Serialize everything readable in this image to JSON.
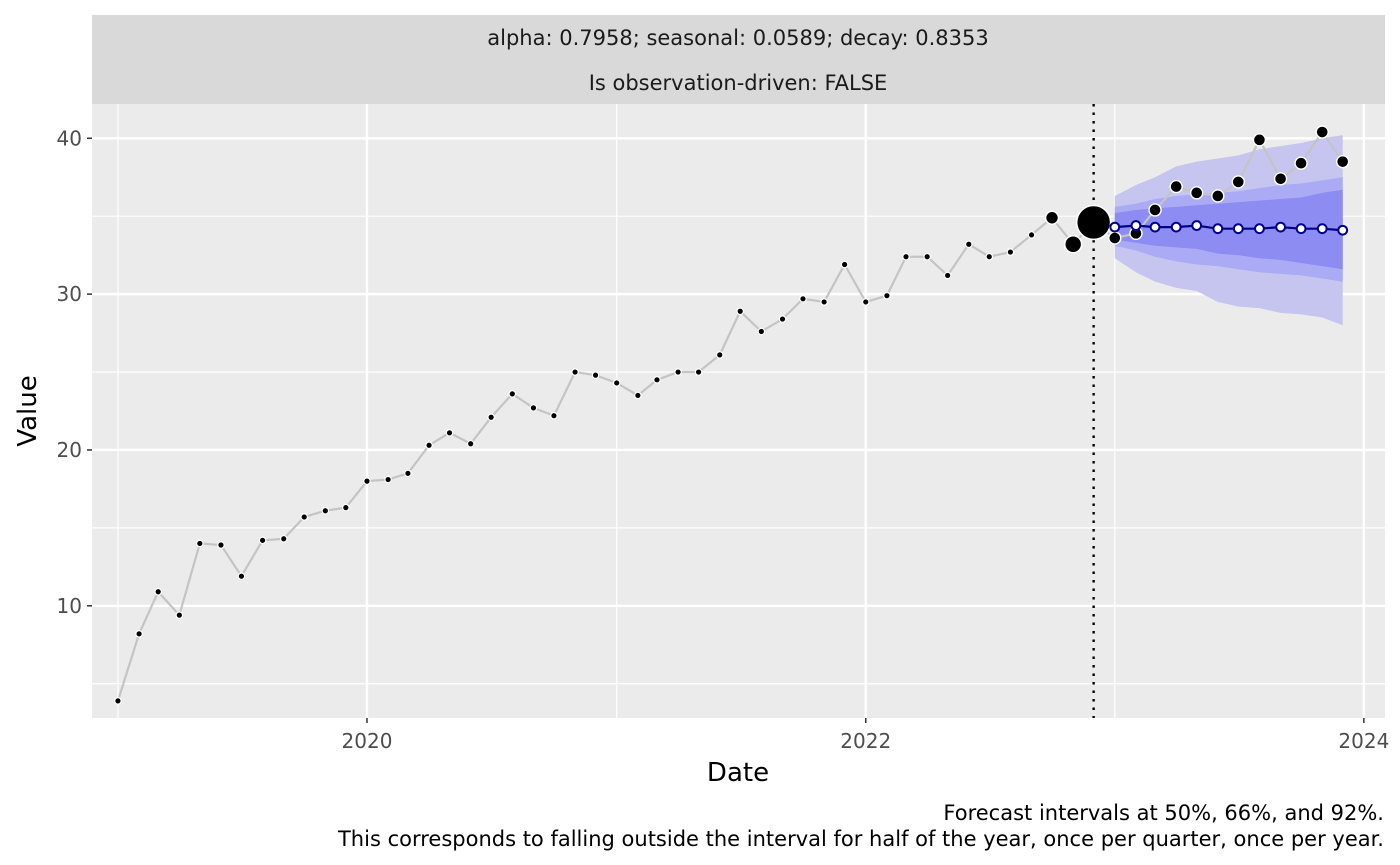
{
  "chart_data": {
    "type": "line",
    "facet_strip": [
      "alpha: 0.7958; seasonal: 0.0589; decay: 0.8353",
      "Is observation-driven: FALSE"
    ],
    "xlabel": "Date",
    "ylabel": "Value",
    "x_ticks": [
      "2020",
      "2022",
      "2024"
    ],
    "y_ticks": [
      10,
      20,
      30,
      40
    ],
    "xlim": [
      "2018-11-24",
      "2024-02-01"
    ],
    "ylim": [
      2.8,
      42.2
    ],
    "grid": true,
    "forecast_origin": "2022-12-01",
    "caption": [
      "Forecast intervals at 50%, 66%, and 92%.",
      "This corresponds to falling outside the interval for half of the year, once per quarter, once per year."
    ],
    "colors": {
      "panel_bg": "#ebebeb",
      "strip_bg": "#d9d9d9",
      "grid": "#ffffff",
      "history_line": "#c4c4c4",
      "forecast_line": "#00008b",
      "band_92": "#c5c5f0",
      "band_66": "#aaaaf5",
      "band_50": "#8c8cf2"
    },
    "series": [
      {
        "role": "observed-history",
        "x": [
          "2019-01",
          "2019-02",
          "2019-03",
          "2019-04",
          "2019-05",
          "2019-06",
          "2019-07",
          "2019-08",
          "2019-09",
          "2019-10",
          "2019-11",
          "2019-12",
          "2020-01",
          "2020-02",
          "2020-03",
          "2020-04",
          "2020-05",
          "2020-06",
          "2020-07",
          "2020-08",
          "2020-09",
          "2020-10",
          "2020-11",
          "2020-12",
          "2021-01",
          "2021-02",
          "2021-03",
          "2021-04",
          "2021-05",
          "2021-06",
          "2021-07",
          "2021-08",
          "2021-09",
          "2021-10",
          "2021-11",
          "2021-12",
          "2022-01",
          "2022-02",
          "2022-03",
          "2022-04",
          "2022-05",
          "2022-06",
          "2022-07",
          "2022-08",
          "2022-09",
          "2022-10",
          "2022-11",
          "2022-12"
        ],
        "values": [
          3.9,
          8.2,
          10.9,
          9.4,
          14.0,
          13.9,
          11.9,
          14.2,
          14.3,
          15.7,
          16.1,
          16.3,
          18.0,
          18.1,
          18.5,
          20.3,
          21.1,
          20.4,
          22.1,
          23.6,
          22.7,
          22.2,
          25.0,
          24.8,
          24.3,
          23.5,
          24.5,
          25.0,
          25.0,
          26.1,
          28.9,
          27.6,
          28.4,
          29.7,
          29.5,
          31.9,
          29.5,
          29.9,
          32.4,
          32.4,
          31.2,
          33.2,
          32.4,
          32.7,
          33.8,
          34.9,
          33.2,
          34.6
        ],
        "point_size": [
          1,
          1,
          1,
          1,
          1,
          1,
          1,
          1,
          1,
          1,
          1,
          1,
          1,
          1,
          1,
          1,
          1,
          1,
          1,
          1,
          1,
          1,
          1,
          1,
          1,
          1,
          1,
          1,
          1,
          1,
          1,
          1,
          1,
          1,
          1,
          1,
          1,
          1,
          1,
          1,
          1,
          1,
          1,
          1,
          1,
          2,
          3,
          6
        ]
      },
      {
        "role": "observed-future",
        "x": [
          "2023-01",
          "2023-02",
          "2023-03",
          "2023-04",
          "2023-05",
          "2023-06",
          "2023-07",
          "2023-08",
          "2023-09",
          "2023-10",
          "2023-11",
          "2023-12"
        ],
        "values": [
          33.6,
          33.9,
          35.4,
          36.9,
          36.5,
          36.3,
          37.2,
          39.9,
          37.4,
          38.4,
          40.4,
          38.5
        ]
      },
      {
        "role": "forecast-mean",
        "x": [
          "2023-01",
          "2023-02",
          "2023-03",
          "2023-04",
          "2023-05",
          "2023-06",
          "2023-07",
          "2023-08",
          "2023-09",
          "2023-10",
          "2023-11",
          "2023-12"
        ],
        "values": [
          34.3,
          34.4,
          34.3,
          34.3,
          34.4,
          34.2,
          34.2,
          34.2,
          34.3,
          34.2,
          34.2,
          34.1
        ]
      }
    ],
    "intervals": [
      {
        "level": "92%",
        "lower": [
          32.3,
          31.4,
          30.8,
          30.4,
          30.2,
          29.5,
          29.2,
          29.1,
          28.8,
          28.7,
          28.5,
          28.0
        ],
        "upper": [
          36.3,
          37.0,
          37.5,
          38.2,
          38.5,
          38.7,
          38.9,
          39.3,
          39.5,
          39.7,
          40.0,
          40.2
        ]
      },
      {
        "level": "66%",
        "lower": [
          33.1,
          32.8,
          32.4,
          32.1,
          31.9,
          31.8,
          31.6,
          31.4,
          31.3,
          31.2,
          31.0,
          30.8
        ],
        "upper": [
          35.6,
          35.8,
          36.1,
          36.3,
          36.4,
          36.5,
          36.6,
          36.8,
          37.0,
          37.1,
          37.3,
          37.5
        ]
      },
      {
        "level": "50%",
        "lower": [
          33.5,
          33.3,
          33.1,
          33.0,
          32.9,
          32.6,
          32.5,
          32.3,
          32.2,
          32.0,
          31.8,
          31.6
        ],
        "upper": [
          35.2,
          35.4,
          35.5,
          35.6,
          35.7,
          35.8,
          35.9,
          36.0,
          36.1,
          36.2,
          36.5,
          36.7
        ]
      }
    ]
  }
}
